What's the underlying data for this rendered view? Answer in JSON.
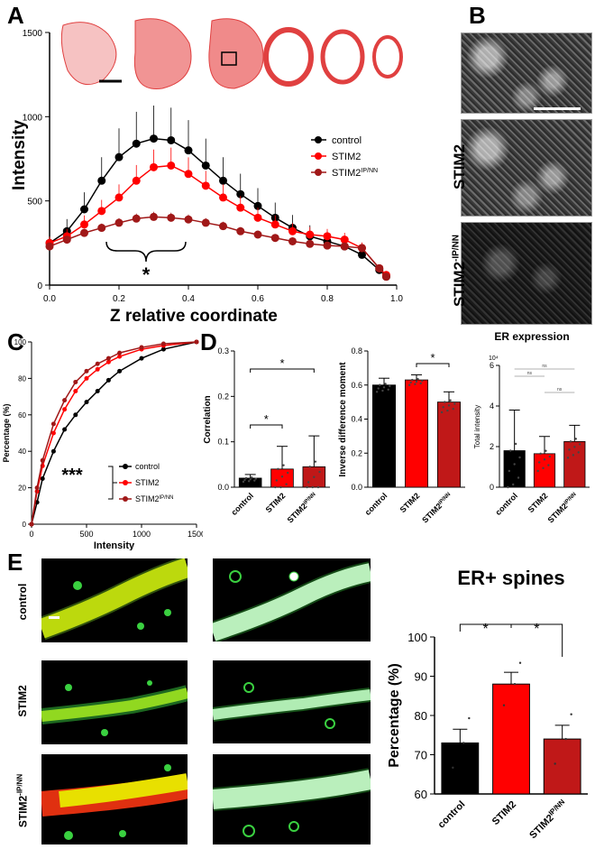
{
  "panels": {
    "A": "A",
    "B": "B",
    "C": "C",
    "D": "D",
    "E": "E"
  },
  "panelA": {
    "ylabel": "Intensity",
    "xlabel": "Z relative coordinate",
    "significance": "*",
    "legend": [
      "control",
      "STIM2",
      "STIM2"
    ],
    "legend_sup": "IP/NN"
  },
  "panelB": {
    "row_labels": [
      "STIM2",
      "STIM2"
    ],
    "row_sup": "-IP/NN"
  },
  "panelC": {
    "ylabel": "Percentage (%)",
    "xlabel": "Intensity",
    "significance": "***",
    "legend": [
      "control",
      "STIM2",
      "STIM2"
    ],
    "legend_sup": "IP/NN"
  },
  "panelD": {
    "corr_ylabel": "Correlation",
    "idm_ylabel": "Inverse difference moment",
    "er_title": "ER expression",
    "er_ylabel": "Total intensity",
    "er_exp": "10⁴",
    "categories": [
      "control",
      "STIM2",
      "STIM2"
    ],
    "cat_sup": "IP/NN",
    "ns": "ns",
    "star": "*"
  },
  "panelE": {
    "row_labels": [
      "control",
      "STIM2",
      "STIM2"
    ],
    "row_sup": "-IP/NN",
    "chart_title": "ER+ spines",
    "ylabel": "Percentage (%)",
    "categories": [
      "control",
      "STIM2",
      "STIM2"
    ],
    "cat_sup": "IP/NN",
    "star": "*"
  },
  "colors": {
    "control": "#000000",
    "stim2": "#ff0000",
    "stim2ipnn": "#a01818"
  },
  "chart_data": [
    {
      "type": "line",
      "id": "A",
      "xlabel": "Z relative coordinate",
      "ylabel": "Intensity",
      "xlim": [
        0,
        1
      ],
      "ylim": [
        0,
        1500
      ],
      "xticks": [
        0.0,
        0.2,
        0.4,
        0.6,
        0.8,
        1.0
      ],
      "yticks": [
        0,
        500,
        1000,
        1500
      ],
      "series": [
        {
          "name": "control",
          "x": [
            0,
            0.05,
            0.1,
            0.15,
            0.2,
            0.25,
            0.3,
            0.35,
            0.4,
            0.45,
            0.5,
            0.55,
            0.6,
            0.65,
            0.7,
            0.75,
            0.8,
            0.85,
            0.9,
            0.95,
            0.97
          ],
          "y": [
            250,
            320,
            450,
            620,
            760,
            840,
            870,
            860,
            800,
            710,
            620,
            540,
            470,
            400,
            340,
            290,
            260,
            230,
            180,
            90,
            50
          ]
        },
        {
          "name": "STIM2",
          "x": [
            0,
            0.05,
            0.1,
            0.15,
            0.2,
            0.25,
            0.3,
            0.35,
            0.4,
            0.45,
            0.5,
            0.55,
            0.6,
            0.65,
            0.7,
            0.75,
            0.8,
            0.85,
            0.9,
            0.95,
            0.97
          ],
          "y": [
            250,
            290,
            360,
            440,
            520,
            620,
            700,
            710,
            660,
            590,
            520,
            460,
            400,
            360,
            320,
            300,
            290,
            270,
            220,
            100,
            60
          ]
        },
        {
          "name": "STIM2",
          "x": [
            0,
            0.05,
            0.1,
            0.15,
            0.2,
            0.25,
            0.3,
            0.35,
            0.4,
            0.45,
            0.5,
            0.55,
            0.6,
            0.65,
            0.7,
            0.75,
            0.8,
            0.85,
            0.9,
            0.95,
            0.97
          ],
          "y": [
            230,
            270,
            310,
            340,
            370,
            395,
            405,
            400,
            390,
            370,
            350,
            320,
            300,
            280,
            260,
            245,
            235,
            230,
            220,
            100,
            50
          ]
        }
      ]
    },
    {
      "type": "line",
      "id": "C",
      "xlabel": "Intensity",
      "ylabel": "Percentage (%)",
      "xlim": [
        0,
        1500
      ],
      "ylim": [
        0,
        100
      ],
      "xticks": [
        0,
        500,
        1000,
        1500
      ],
      "yticks": [
        0,
        20,
        40,
        60,
        80,
        100
      ],
      "series": [
        {
          "name": "control",
          "x": [
            0,
            50,
            100,
            200,
            300,
            400,
            500,
            600,
            700,
            800,
            1000,
            1200,
            1500
          ],
          "y": [
            0,
            12,
            25,
            40,
            52,
            60,
            67,
            73,
            79,
            84,
            91,
            96,
            100
          ]
        },
        {
          "name": "STIM2",
          "x": [
            0,
            50,
            100,
            200,
            300,
            400,
            500,
            600,
            700,
            800,
            1000,
            1200,
            1500
          ],
          "y": [
            0,
            18,
            32,
            50,
            63,
            73,
            80,
            85,
            89,
            92,
            96,
            98,
            100
          ]
        },
        {
          "name": "STIM2",
          "x": [
            0,
            50,
            100,
            200,
            300,
            400,
            500,
            600,
            700,
            800,
            1000,
            1200,
            1500
          ],
          "y": [
            0,
            20,
            35,
            55,
            68,
            78,
            84,
            88,
            91,
            94,
            97,
            99,
            100
          ]
        }
      ]
    },
    {
      "type": "bar",
      "id": "D-correlation",
      "ylabel": "Correlation",
      "categories": [
        "control",
        "STIM2",
        "STIM2"
      ],
      "values": [
        0.02,
        0.04,
        0.045
      ],
      "errors": [
        0.008,
        0.05,
        0.068
      ],
      "ylim": [
        0,
        0.3
      ],
      "yticks": [
        0.0,
        0.1,
        0.2,
        0.3
      ]
    },
    {
      "type": "bar",
      "id": "D-idm",
      "ylabel": "Inverse difference moment",
      "categories": [
        "control",
        "STIM2",
        "STIM2"
      ],
      "values": [
        0.6,
        0.63,
        0.5
      ],
      "errors": [
        0.04,
        0.03,
        0.06
      ],
      "ylim": [
        0,
        0.8
      ],
      "yticks": [
        0.0,
        0.2,
        0.4,
        0.6,
        0.8
      ]
    },
    {
      "type": "bar",
      "id": "D-er",
      "title": "ER expression",
      "ylabel": "Total intensity",
      "categories": [
        "control",
        "STIM2",
        "STIM2"
      ],
      "values": [
        1.8,
        1.65,
        2.25
      ],
      "errors": [
        2.0,
        0.85,
        0.8
      ],
      "ylim": [
        0,
        6
      ],
      "yticks": [
        0,
        2,
        4,
        6
      ]
    },
    {
      "type": "bar",
      "id": "E",
      "title": "ER+ spines",
      "ylabel": "Percentage (%)",
      "categories": [
        "control",
        "STIM2",
        "STIM2"
      ],
      "values": [
        73,
        88,
        74
      ],
      "errors": [
        3.5,
        3,
        3.5
      ],
      "ylim": [
        60,
        100
      ],
      "yticks": [
        60,
        70,
        80,
        90,
        100
      ]
    }
  ]
}
